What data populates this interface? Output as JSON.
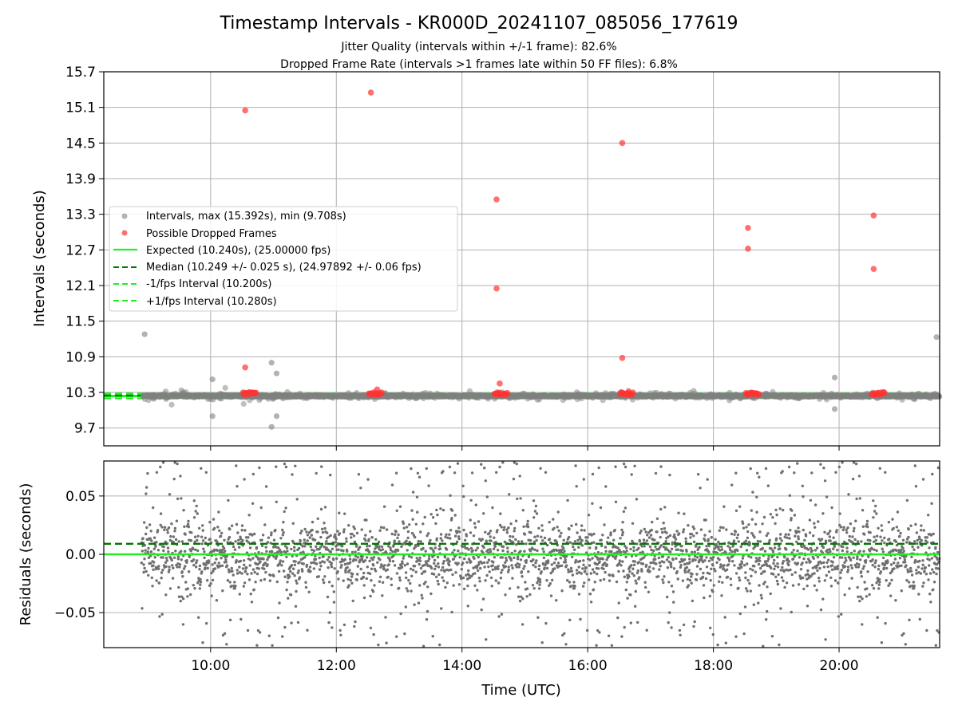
{
  "chart_data": [
    {
      "type": "scatter",
      "title": "Timestamp Intervals - KR000D_20241107_085056_177619",
      "subtitle_lines": [
        "Jitter Quality (intervals within +/-1 frame): 82.6%",
        "Dropped Frame Rate (intervals >1 frames late within 50 FF files): 6.8%"
      ],
      "ylabel": "Intervals (seconds)",
      "ylim": [
        9.4,
        15.7
      ],
      "yticks": [
        9.7,
        10.3,
        10.9,
        11.5,
        12.1,
        12.7,
        13.3,
        13.9,
        14.5,
        15.1,
        15.7
      ],
      "ytick_labels": [
        "9.7",
        "10.3",
        "10.9",
        "11.5",
        "12.1",
        "12.7",
        "13.3",
        "13.9",
        "14.5",
        "15.1",
        "15.7"
      ],
      "xlim_hours": [
        8.3,
        21.6
      ],
      "xticks_hours": [
        10,
        12,
        14,
        16,
        18,
        20
      ],
      "grid": true,
      "legend_position": "center-left",
      "series": [
        {
          "name": "Intervals, max (15.392s), min (9.708s)",
          "color": "#808080",
          "marker": "circle",
          "outliers": [
            {
              "x": 8.95,
              "y": 11.28
            },
            {
              "x": 10.03,
              "y": 10.52
            },
            {
              "x": 10.03,
              "y": 9.9
            },
            {
              "x": 10.97,
              "y": 10.8
            },
            {
              "x": 11.05,
              "y": 10.62
            },
            {
              "x": 11.05,
              "y": 9.9
            },
            {
              "x": 10.97,
              "y": 9.72
            },
            {
              "x": 19.93,
              "y": 10.55
            },
            {
              "x": 19.93,
              "y": 10.02
            },
            {
              "x": 21.55,
              "y": 11.23
            }
          ]
        },
        {
          "name": "Possible Dropped Frames",
          "color": "#ff3333",
          "marker": "circle",
          "points": [
            {
              "x": 10.55,
              "y": 15.05
            },
            {
              "x": 10.55,
              "y": 10.72
            },
            {
              "x": 12.55,
              "y": 15.35
            },
            {
              "x": 12.65,
              "y": 10.35
            },
            {
              "x": 14.55,
              "y": 13.55
            },
            {
              "x": 14.55,
              "y": 12.05
            },
            {
              "x": 14.6,
              "y": 10.45
            },
            {
              "x": 16.55,
              "y": 14.5
            },
            {
              "x": 16.55,
              "y": 10.88
            },
            {
              "x": 16.65,
              "y": 10.32
            },
            {
              "x": 18.55,
              "y": 13.07
            },
            {
              "x": 18.55,
              "y": 12.72
            },
            {
              "x": 20.55,
              "y": 13.28
            },
            {
              "x": 20.55,
              "y": 12.38
            }
          ],
          "clusters_x": [
            10.62,
            12.62,
            14.62,
            16.62,
            18.62,
            20.62
          ],
          "cluster_y": 10.28
        }
      ],
      "reference_lines": [
        {
          "name": "Expected (10.240s), (25.00000 fps)",
          "y": 10.24,
          "color": "#22ee22",
          "style": "solid"
        },
        {
          "name": "Median (10.249 +/- 0.025 s), (24.97892 +/- 0.06 fps)",
          "y": 10.249,
          "color": "#007700",
          "style": "dashed"
        },
        {
          "name": "-1/fps Interval (10.200s)",
          "y": 10.2,
          "color": "#22ee22",
          "style": "dashed"
        },
        {
          "name": "+1/fps Interval (10.280s)",
          "y": 10.28,
          "color": "#22ee22",
          "style": "dashed"
        }
      ]
    },
    {
      "type": "scatter",
      "ylabel": "Residuals (seconds)",
      "xlabel": "Time (UTC)",
      "ylim": [
        -0.08,
        0.08
      ],
      "yticks": [
        -0.05,
        0.0,
        0.05
      ],
      "ytick_labels": [
        "−0.05",
        "0.00",
        "0.05"
      ],
      "xlim_hours": [
        8.3,
        21.6
      ],
      "xticks_hours": [
        10,
        12,
        14,
        16,
        18,
        20
      ],
      "xtick_labels": [
        "10:00",
        "12:00",
        "14:00",
        "16:00",
        "18:00",
        "20:00"
      ],
      "grid": true,
      "series_color": "#707070",
      "data_x_range_hours": [
        8.9,
        21.6
      ],
      "reference_lines": [
        {
          "y": 0.0,
          "color": "#22ee22",
          "style": "solid"
        },
        {
          "y": 0.009,
          "color": "#007700",
          "style": "dashed"
        }
      ]
    }
  ]
}
